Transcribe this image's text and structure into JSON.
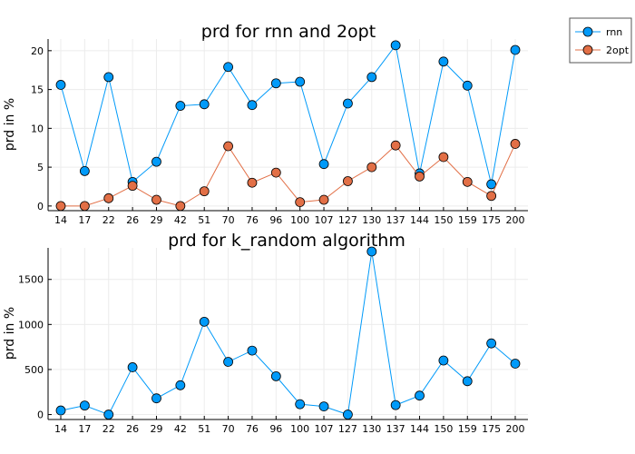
{
  "chart_data": [
    {
      "type": "line",
      "title": "prd for rnn and 2opt",
      "xlabel": "",
      "ylabel": "prd in %",
      "categories": [
        "14",
        "17",
        "22",
        "26",
        "29",
        "42",
        "51",
        "70",
        "76",
        "96",
        "100",
        "107",
        "127",
        "130",
        "137",
        "144",
        "150",
        "159",
        "175",
        "200"
      ],
      "ylim": [
        -0.6,
        21.5
      ],
      "yticks": [
        0,
        5,
        10,
        15,
        20
      ],
      "grid": true,
      "legend_position": "outside-top-right",
      "series": [
        {
          "name": "rnn",
          "color": "#009AF9",
          "values": [
            15.6,
            4.5,
            16.6,
            3.1,
            5.7,
            12.9,
            13.1,
            17.9,
            13.0,
            15.8,
            16.0,
            5.4,
            13.2,
            16.6,
            20.7,
            4.2,
            18.6,
            15.5,
            2.8,
            20.1
          ]
        },
        {
          "name": "2opt",
          "color": "#E26F46",
          "values": [
            0.0,
            0.0,
            1.0,
            2.6,
            0.8,
            0.0,
            1.9,
            7.7,
            3.0,
            4.3,
            0.5,
            0.8,
            3.2,
            5.0,
            7.8,
            3.8,
            6.3,
            3.1,
            1.3,
            8.0
          ]
        }
      ]
    },
    {
      "type": "line",
      "title": "prd for k_random algorithm",
      "xlabel": "",
      "ylabel": "prd in %",
      "categories": [
        "14",
        "17",
        "22",
        "26",
        "29",
        "42",
        "51",
        "70",
        "76",
        "96",
        "100",
        "107",
        "127",
        "130",
        "137",
        "144",
        "150",
        "159",
        "175",
        "200"
      ],
      "ylim": [
        -55,
        1850
      ],
      "yticks": [
        0,
        500,
        1000,
        1500
      ],
      "grid": true,
      "legend": false,
      "series": [
        {
          "name": "",
          "color": "#009AF9",
          "values": [
            45,
            100,
            0,
            525,
            180,
            325,
            1030,
            585,
            710,
            425,
            115,
            90,
            0,
            1810,
            105,
            210,
            600,
            370,
            790,
            565
          ]
        }
      ]
    }
  ]
}
